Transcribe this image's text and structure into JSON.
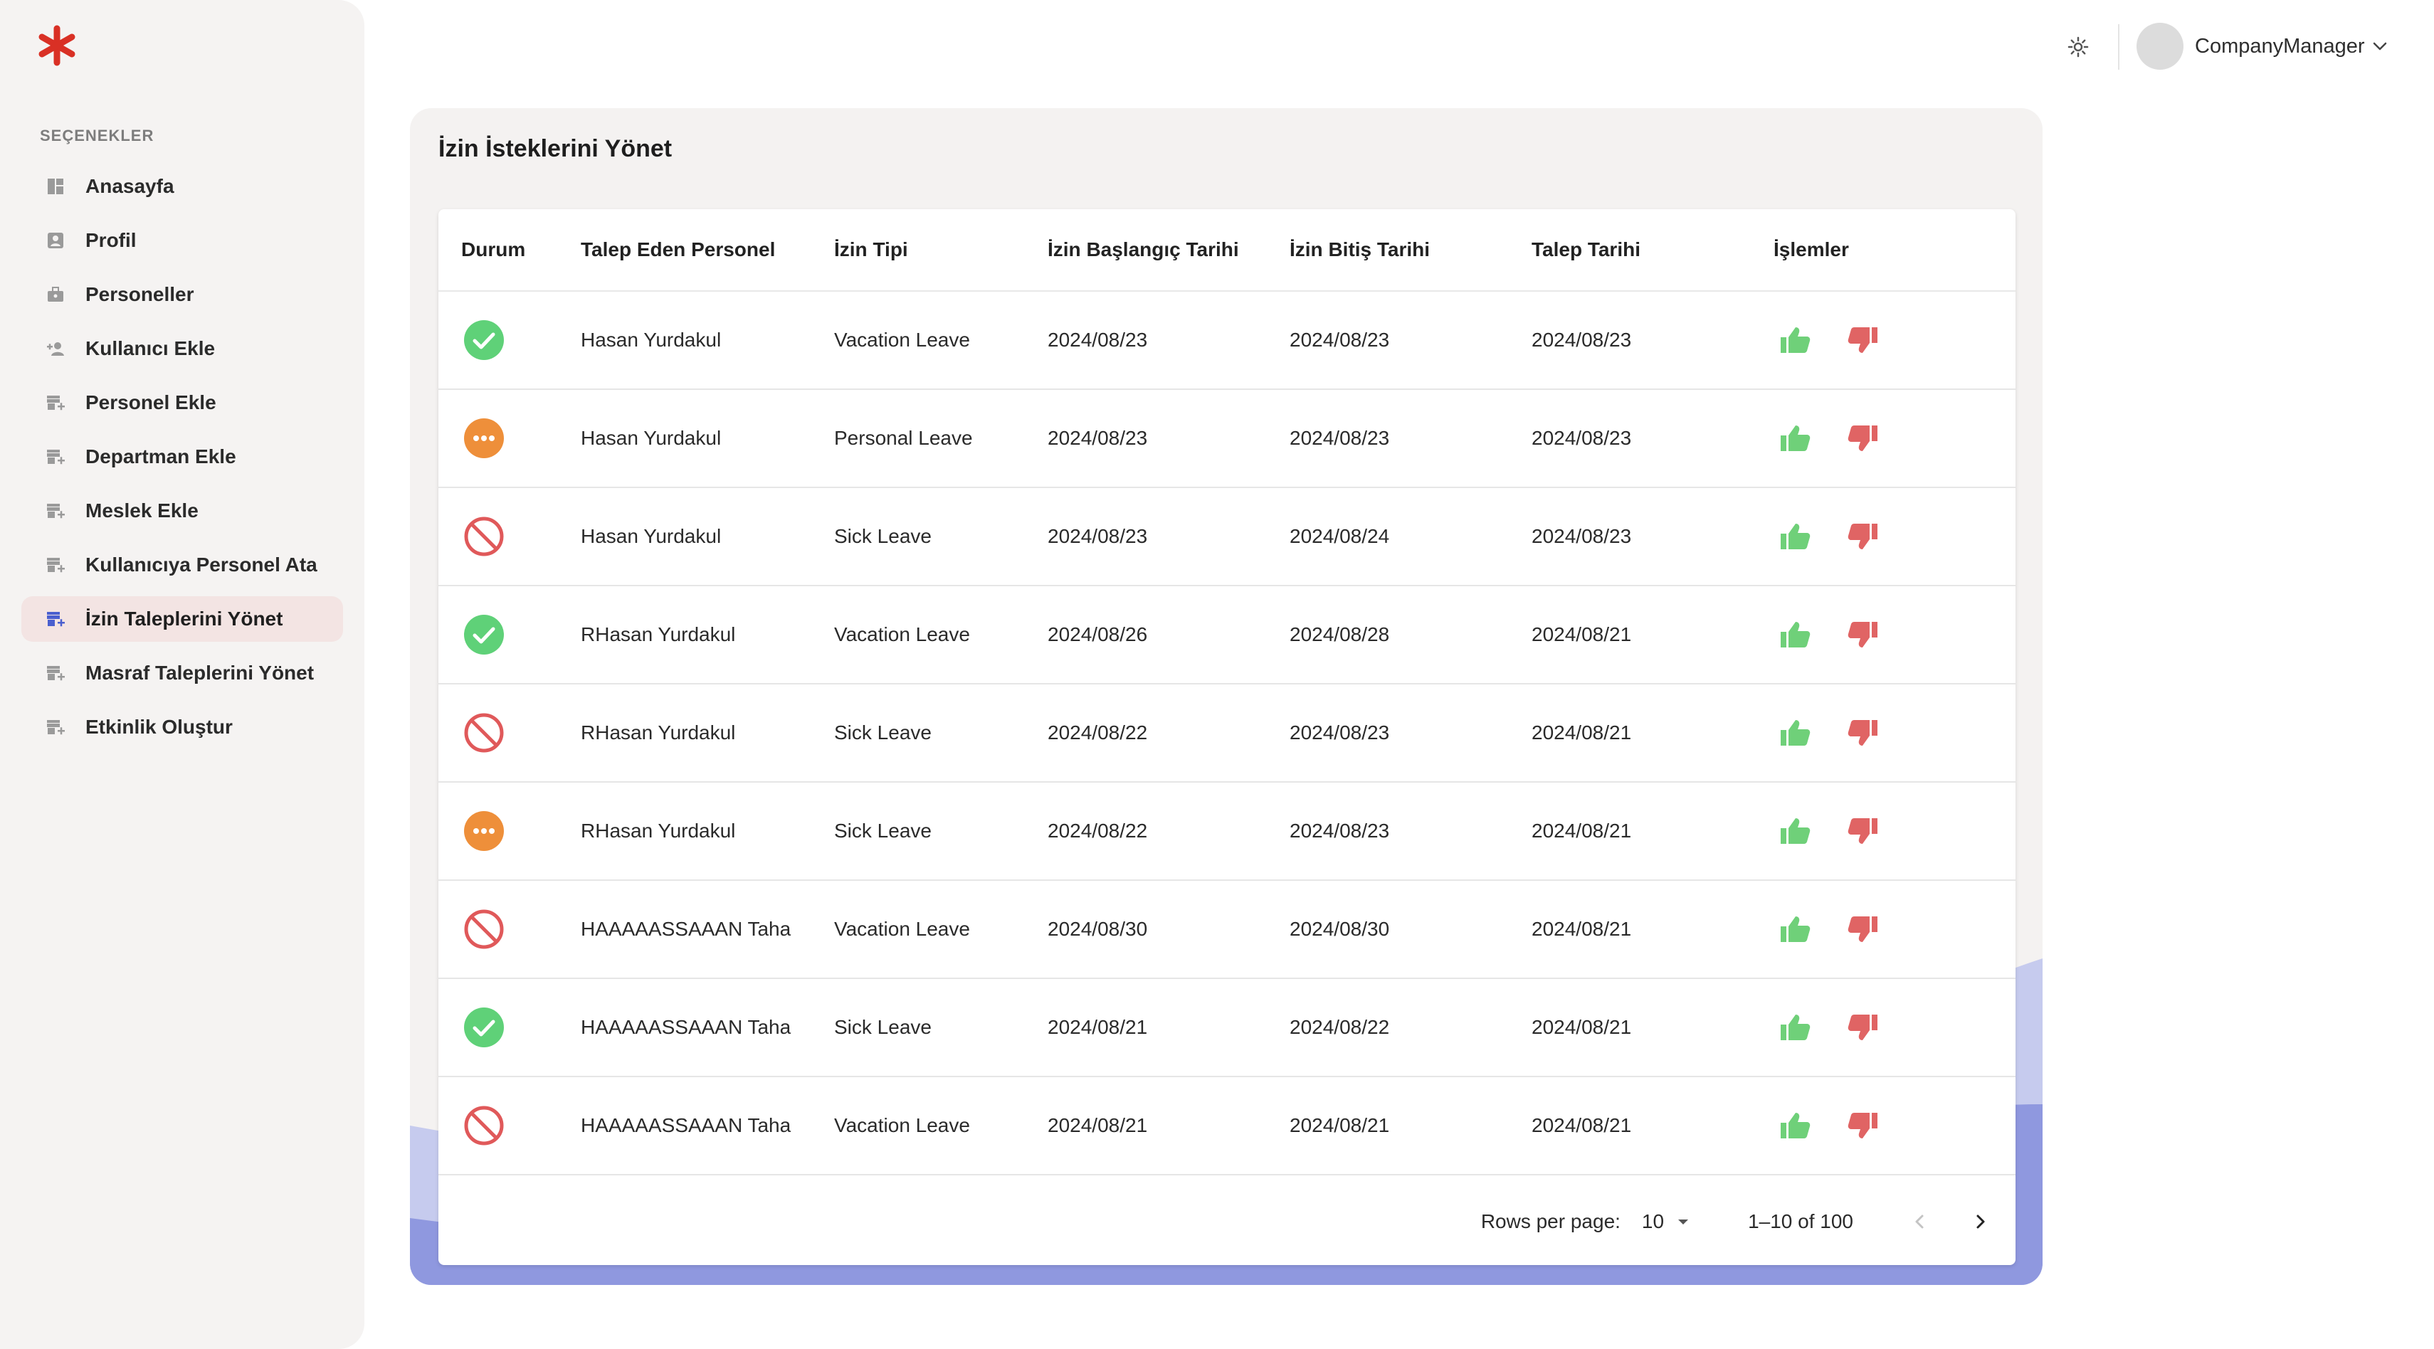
{
  "sidebar": {
    "section_title": "SEÇENEKLER",
    "items": [
      {
        "label": "Anasayfa",
        "icon": "dashboard-icon"
      },
      {
        "label": "Profil",
        "icon": "profile-icon"
      },
      {
        "label": "Personeller",
        "icon": "briefcase-icon"
      },
      {
        "label": "Kullanıcı Ekle",
        "icon": "add-user-icon"
      },
      {
        "label": "Personel Ekle",
        "icon": "store-add-icon"
      },
      {
        "label": "Departman Ekle",
        "icon": "store-add-icon"
      },
      {
        "label": "Meslek Ekle",
        "icon": "store-add-icon"
      },
      {
        "label": "Kullanıcıya Personel Ata",
        "icon": "store-add-icon"
      },
      {
        "label": "İzin Taleplerini Yönet",
        "icon": "store-add-icon",
        "active": true
      },
      {
        "label": "Masraf Taleplerini Yönet",
        "icon": "store-add-icon"
      },
      {
        "label": "Etkinlik Oluştur",
        "icon": "store-add-icon"
      }
    ]
  },
  "header": {
    "user_name": "CompanyManager",
    "theme_icon": "sun-icon"
  },
  "page": {
    "title": "İzin İsteklerini Yönet"
  },
  "table": {
    "columns": [
      "Durum",
      "Talep Eden Personel",
      "İzin Tipi",
      "İzin Başlangıç Tarihi",
      "İzin Bitiş Tarihi",
      "Talep Tarihi",
      "İşlemler"
    ],
    "rows": [
      {
        "status": "approved",
        "person": "Hasan Yurdakul",
        "type": "Vacation Leave",
        "start": "2024/08/23",
        "end": "2024/08/23",
        "requested": "2024/08/23"
      },
      {
        "status": "pending",
        "person": "Hasan Yurdakul",
        "type": "Personal Leave",
        "start": "2024/08/23",
        "end": "2024/08/23",
        "requested": "2024/08/23"
      },
      {
        "status": "rejected",
        "person": "Hasan Yurdakul",
        "type": "Sick Leave",
        "start": "2024/08/23",
        "end": "2024/08/24",
        "requested": "2024/08/23"
      },
      {
        "status": "approved",
        "person": "RHasan Yurdakul",
        "type": "Vacation Leave",
        "start": "2024/08/26",
        "end": "2024/08/28",
        "requested": "2024/08/21"
      },
      {
        "status": "rejected",
        "person": "RHasan Yurdakul",
        "type": "Sick Leave",
        "start": "2024/08/22",
        "end": "2024/08/23",
        "requested": "2024/08/21"
      },
      {
        "status": "pending",
        "person": "RHasan Yurdakul",
        "type": "Sick Leave",
        "start": "2024/08/22",
        "end": "2024/08/23",
        "requested": "2024/08/21"
      },
      {
        "status": "rejected",
        "person": "HAAAAASSAAAN Taha",
        "type": "Vacation Leave",
        "start": "2024/08/30",
        "end": "2024/08/30",
        "requested": "2024/08/21"
      },
      {
        "status": "approved",
        "person": "HAAAAASSAAAN Taha",
        "type": "Sick Leave",
        "start": "2024/08/21",
        "end": "2024/08/22",
        "requested": "2024/08/21"
      },
      {
        "status": "rejected",
        "person": "HAAAAASSAAAN Taha",
        "type": "Vacation Leave",
        "start": "2024/08/21",
        "end": "2024/08/21",
        "requested": "2024/08/21"
      }
    ]
  },
  "pagination": {
    "rows_per_page_label": "Rows per page:",
    "rows_per_page": "10",
    "range": "1–10 of 100"
  },
  "colors": {
    "brand_red": "#d93025",
    "approved_green": "#5fd178",
    "pending_orange": "#ee8f3a",
    "rejected_red": "#e0595a",
    "approve_thumb": "#6fd079",
    "reject_thumb": "#e06464",
    "active_nav_bg": "#f3e4e3",
    "wave_light": "#c6cbee",
    "wave_dark": "#8f98df"
  }
}
